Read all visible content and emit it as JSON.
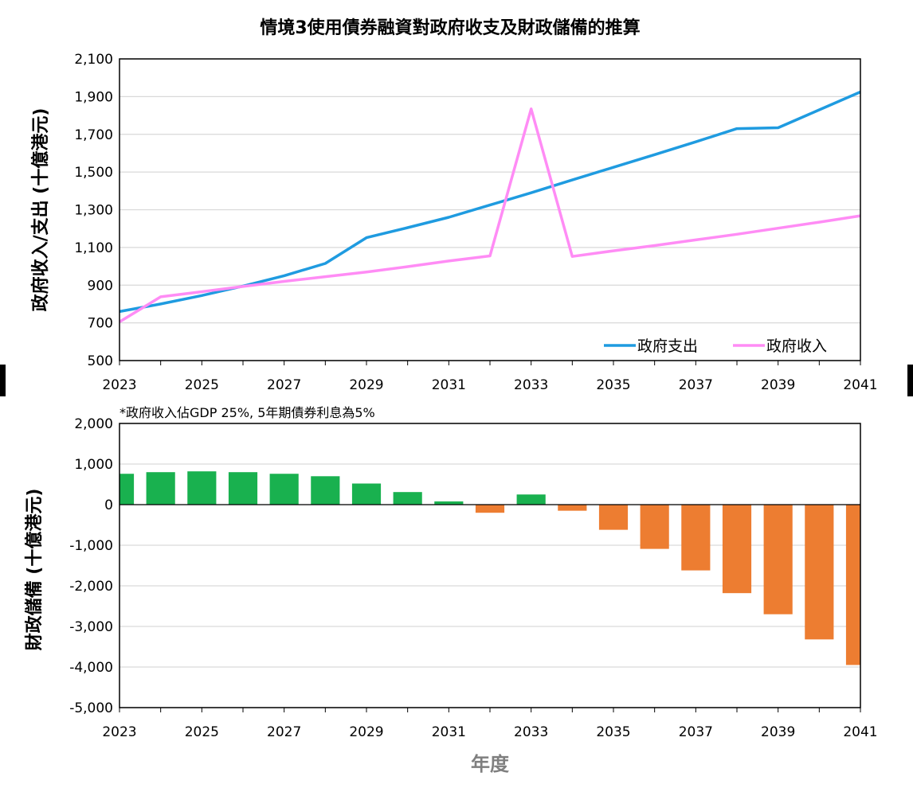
{
  "chart_data": [
    {
      "type": "line",
      "title": "情境3使用債券融資對政府收支及財政儲備的推算",
      "ylabel": "政府收入/支出 (十億港元)",
      "xlabel": "",
      "ylim": [
        500,
        2100
      ],
      "y_ticks": [
        "500",
        "700",
        "900",
        "1,100",
        "1,300",
        "1,500",
        "1,700",
        "1,900",
        "2,100"
      ],
      "x_ticks": [
        "2023",
        "2025",
        "2027",
        "2029",
        "2031",
        "2033",
        "2035",
        "2037",
        "2039",
        "2041"
      ],
      "grid": "horizontal",
      "legend": "bottom-right",
      "x": [
        2023,
        2024,
        2025,
        2026,
        2027,
        2028,
        2029,
        2030,
        2031,
        2032,
        2033,
        2034,
        2035,
        2036,
        2037,
        2038,
        2039,
        2040,
        2041
      ],
      "series": [
        {
          "name": "政府支出",
          "color": "#1f9be0",
          "values": [
            760,
            800,
            845,
            895,
            950,
            1015,
            1152,
            1205,
            1260,
            1325,
            1390,
            1458,
            1525,
            1592,
            1660,
            1730,
            1735,
            1830,
            1925
          ]
        },
        {
          "name": "政府收入",
          "color": "#ff8cf5",
          "values": [
            705,
            838,
            865,
            893,
            920,
            945,
            970,
            998,
            1028,
            1055,
            1835,
            1052,
            1082,
            1110,
            1140,
            1170,
            1202,
            1234,
            1268
          ]
        }
      ]
    },
    {
      "type": "bar",
      "ylabel": "財政儲備 (十億港元)",
      "xlabel": "年度",
      "note": "*政府收入佔GDP 25%, 5年期債券利息為5%",
      "ylim": [
        -5000,
        2000
      ],
      "y_ticks": [
        "-5,000",
        "-4,000",
        "-3,000",
        "-2,000",
        "-1,000",
        "0",
        "1,000",
        "2,000"
      ],
      "x_ticks": [
        "2023",
        "2025",
        "2027",
        "2029",
        "2031",
        "2033",
        "2035",
        "2037",
        "2039",
        "2041"
      ],
      "grid": "horizontal",
      "positive_color": "#19b14f",
      "negative_color": "#ed7d31",
      "categories": [
        2023,
        2024,
        2025,
        2026,
        2027,
        2028,
        2029,
        2030,
        2031,
        2032,
        2033,
        2034,
        2035,
        2036,
        2037,
        2038,
        2039,
        2040,
        2041
      ],
      "values": [
        760,
        800,
        820,
        800,
        760,
        700,
        520,
        310,
        80,
        -200,
        250,
        -150,
        -620,
        -1090,
        -1620,
        -2180,
        -2700,
        -3320,
        -3950
      ]
    }
  ]
}
